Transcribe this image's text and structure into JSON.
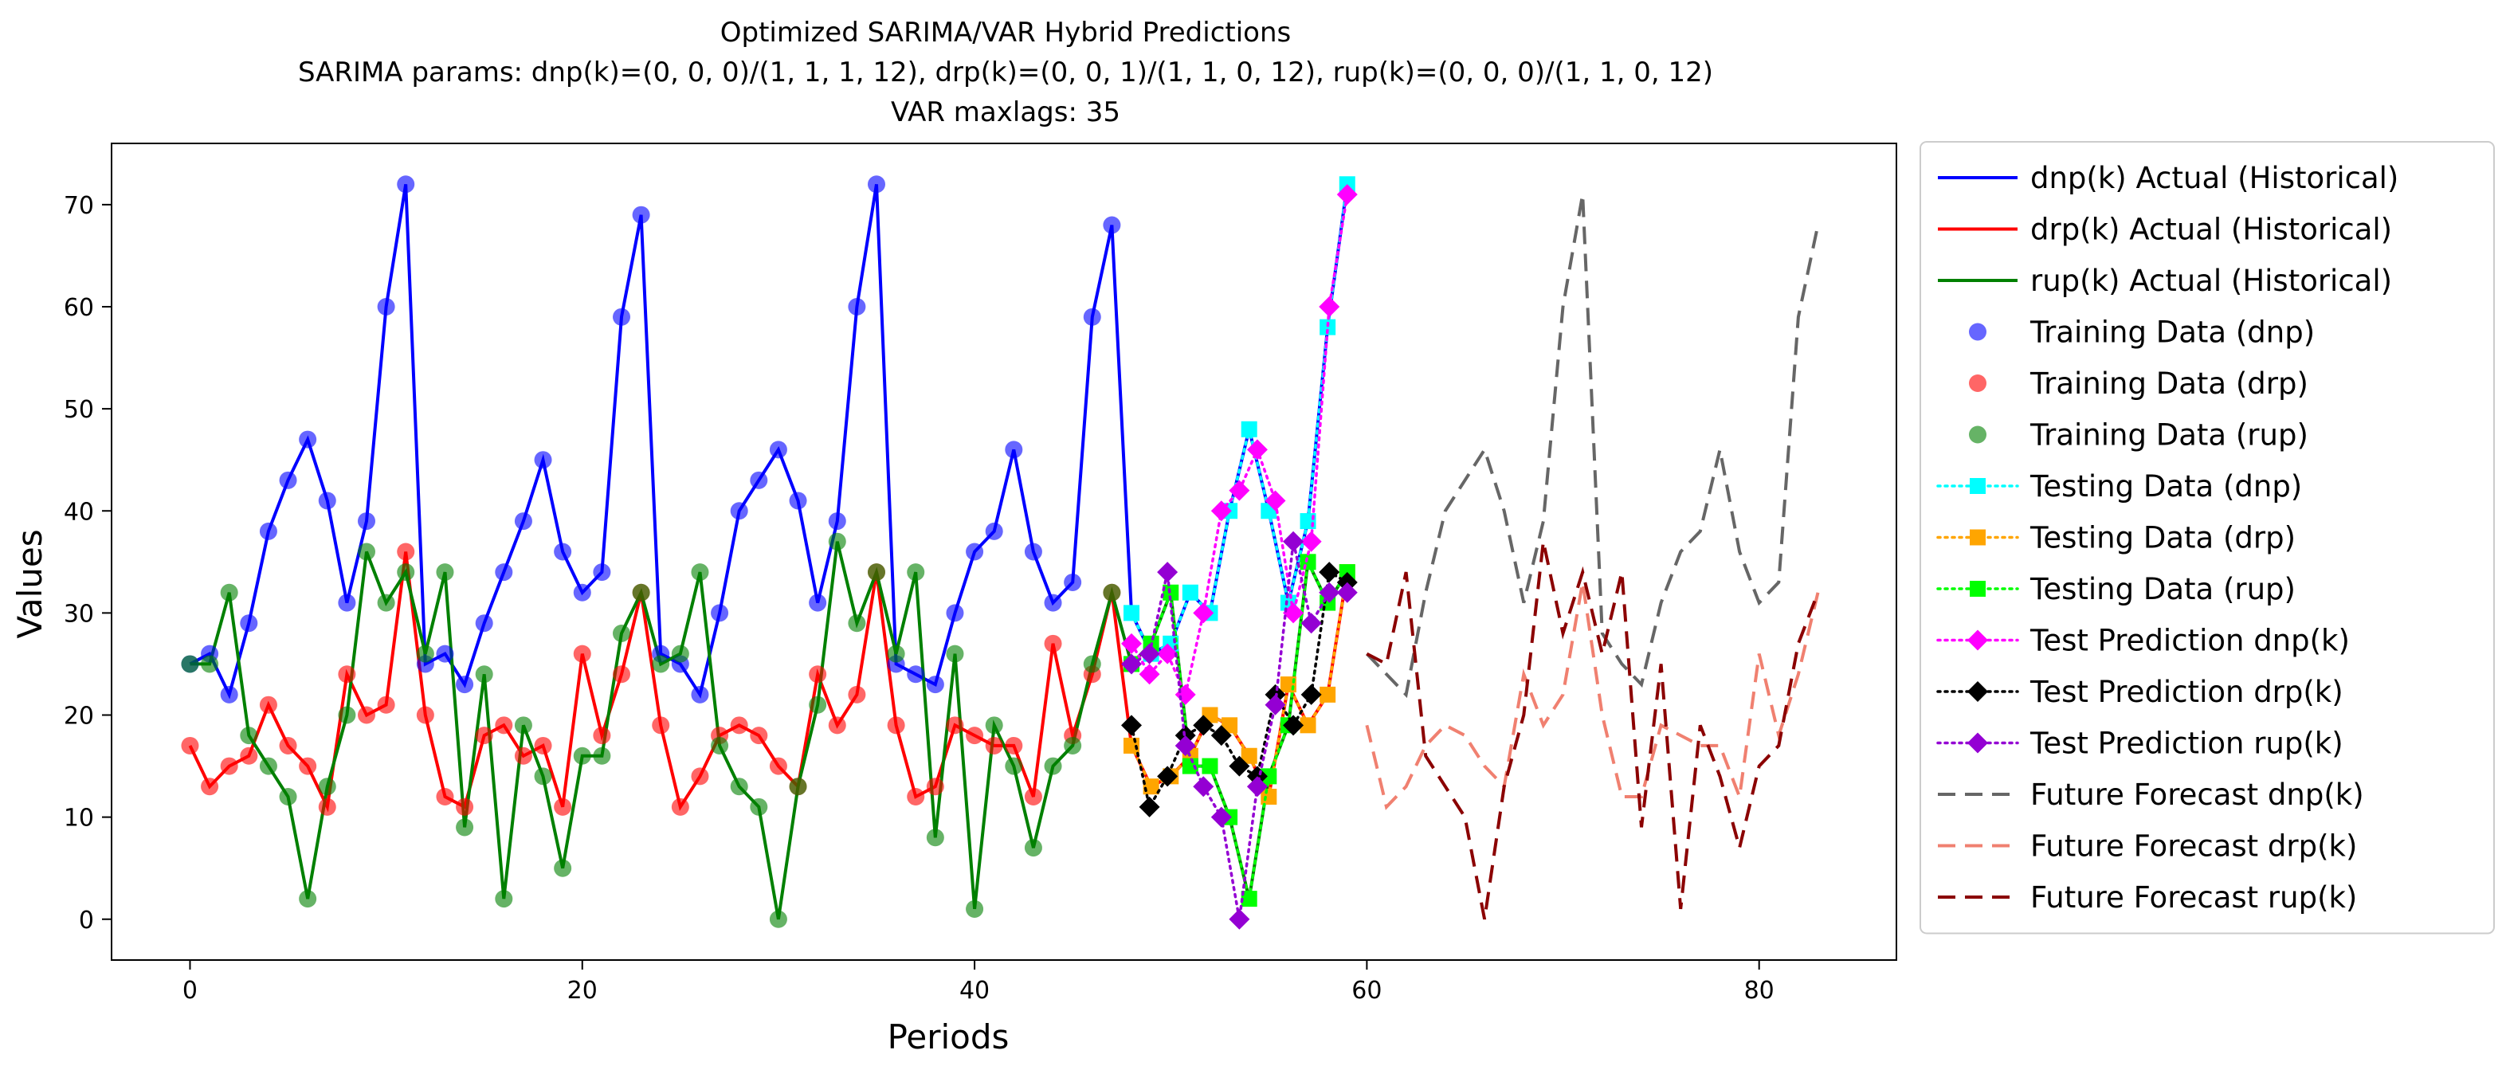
{
  "chart_data": {
    "type": "line",
    "title_lines": [
      "Optimized SARIMA/VAR Hybrid Predictions",
      "SARIMA params: dnp(k)=(0, 0, 0)/(1, 1, 1, 12), drp(k)=(0, 0, 1)/(1, 1, 0, 12), rup(k)=(0, 0, 0)/(1, 1, 0, 12)",
      "VAR maxlags: 35"
    ],
    "xlabel": "Periods",
    "ylabel": "Values",
    "xlim": [
      -4,
      87
    ],
    "ylim": [
      -4,
      76
    ],
    "x_ticks": [
      0,
      20,
      40,
      60,
      80
    ],
    "y_ticks": [
      0,
      10,
      20,
      30,
      40,
      50,
      60,
      70
    ],
    "legend_position": "outside-right",
    "colors": {
      "dnp": "#0000ff",
      "drp": "#ff0000",
      "rup": "#008000",
      "test_dnp": "#00ffff",
      "test_drp": "#ffa500",
      "test_rup": "#00ff00",
      "pred_dnp": "#ff00ff",
      "pred_drp": "#000000",
      "pred_rup": "#9400d3",
      "fc_dnp": "#666666",
      "fc_drp": "#f08070",
      "fc_rup": "#8b0000"
    },
    "actual": {
      "dnp": [
        25,
        26,
        22,
        29,
        38,
        43,
        47,
        41,
        31,
        39,
        60,
        72,
        25,
        26,
        23,
        29,
        34,
        39,
        45,
        36,
        32,
        34,
        59,
        69,
        26,
        25,
        22,
        30,
        40,
        43,
        46,
        41,
        31,
        39,
        60,
        72,
        25,
        24,
        23,
        30,
        36,
        38,
        46,
        36,
        31,
        33,
        59,
        68,
        30,
        26,
        27,
        32,
        30,
        40,
        48,
        40,
        31,
        39,
        58,
        72
      ],
      "drp": [
        17,
        13,
        15,
        16,
        21,
        17,
        15,
        11,
        24,
        20,
        21,
        36,
        20,
        12,
        11,
        18,
        19,
        16,
        17,
        11,
        26,
        18,
        24,
        32,
        19,
        11,
        14,
        18,
        19,
        18,
        15,
        13,
        24,
        19,
        22,
        34,
        19,
        12,
        13,
        19,
        18,
        17,
        17,
        12,
        27,
        18,
        24,
        32,
        17,
        13,
        14,
        16,
        20,
        19,
        16,
        12,
        23,
        19,
        22,
        34
      ],
      "rup": [
        25,
        25,
        32,
        18,
        15,
        12,
        2,
        13,
        20,
        36,
        31,
        34,
        26,
        34,
        9,
        24,
        2,
        19,
        14,
        5,
        16,
        16,
        28,
        32,
        25,
        26,
        34,
        17,
        13,
        11,
        0,
        13,
        21,
        37,
        29,
        34,
        26,
        34,
        8,
        26,
        1,
        19,
        15,
        7,
        15,
        17,
        25,
        32,
        25,
        27,
        32,
        15,
        15,
        10,
        2,
        14,
        19,
        35,
        31,
        34
      ]
    },
    "test_start": 48,
    "predictions": {
      "dnp": [
        27,
        24,
        26,
        22,
        30,
        40,
        42,
        46,
        41,
        30,
        37,
        60,
        71
      ],
      "drp": [
        19,
        11,
        14,
        18,
        19,
        18,
        15,
        14,
        22,
        19,
        22,
        34,
        33
      ],
      "rup": [
        25,
        26,
        34,
        17,
        13,
        10,
        0,
        13,
        21,
        37,
        29,
        32,
        32
      ]
    },
    "future_x_start": 60,
    "forecast": {
      "dnp": [
        26,
        24,
        22,
        32,
        40,
        43,
        46,
        40,
        31,
        39,
        60,
        71,
        28,
        25,
        23,
        31,
        36,
        38,
        46,
        36,
        31,
        33,
        59,
        68
      ],
      "drp": [
        19,
        11,
        13,
        17,
        19,
        18,
        15,
        13,
        24,
        19,
        22,
        33,
        20,
        12,
        12,
        19,
        18,
        17,
        17,
        12,
        26,
        18,
        24,
        32
      ],
      "rup": [
        26,
        25,
        34,
        16,
        13,
        10,
        0,
        13,
        20,
        37,
        28,
        34,
        26,
        34,
        9,
        25,
        1,
        19,
        14,
        7,
        15,
        17,
        27,
        32
      ]
    },
    "legend": [
      {
        "label": "dnp(k) Actual (Historical)",
        "style": "line",
        "color_key": "dnp"
      },
      {
        "label": "drp(k) Actual (Historical)",
        "style": "line",
        "color_key": "drp"
      },
      {
        "label": "rup(k) Actual (Historical)",
        "style": "line",
        "color_key": "rup"
      },
      {
        "label": "Training Data (dnp)",
        "style": "circle",
        "color_key": "dnp"
      },
      {
        "label": "Training Data (drp)",
        "style": "circle",
        "color_key": "drp"
      },
      {
        "label": "Training Data (rup)",
        "style": "circle",
        "color_key": "rup"
      },
      {
        "label": "Testing Data (dnp)",
        "style": "dotted-square",
        "color_key": "test_dnp"
      },
      {
        "label": "Testing Data (drp)",
        "style": "dotted-square",
        "color_key": "test_drp"
      },
      {
        "label": "Testing Data (rup)",
        "style": "dotted-square",
        "color_key": "test_rup"
      },
      {
        "label": "Test Prediction dnp(k)",
        "style": "dotted-diamond",
        "color_key": "pred_dnp"
      },
      {
        "label": "Test Prediction drp(k)",
        "style": "dotted-diamond",
        "color_key": "pred_drp"
      },
      {
        "label": "Test Prediction rup(k)",
        "style": "dotted-diamond",
        "color_key": "pred_rup"
      },
      {
        "label": "Future Forecast dnp(k)",
        "style": "dashed",
        "color_key": "fc_dnp"
      },
      {
        "label": "Future Forecast drp(k)",
        "style": "dashed",
        "color_key": "fc_drp"
      },
      {
        "label": "Future Forecast rup(k)",
        "style": "dashed",
        "color_key": "fc_rup"
      }
    ]
  }
}
